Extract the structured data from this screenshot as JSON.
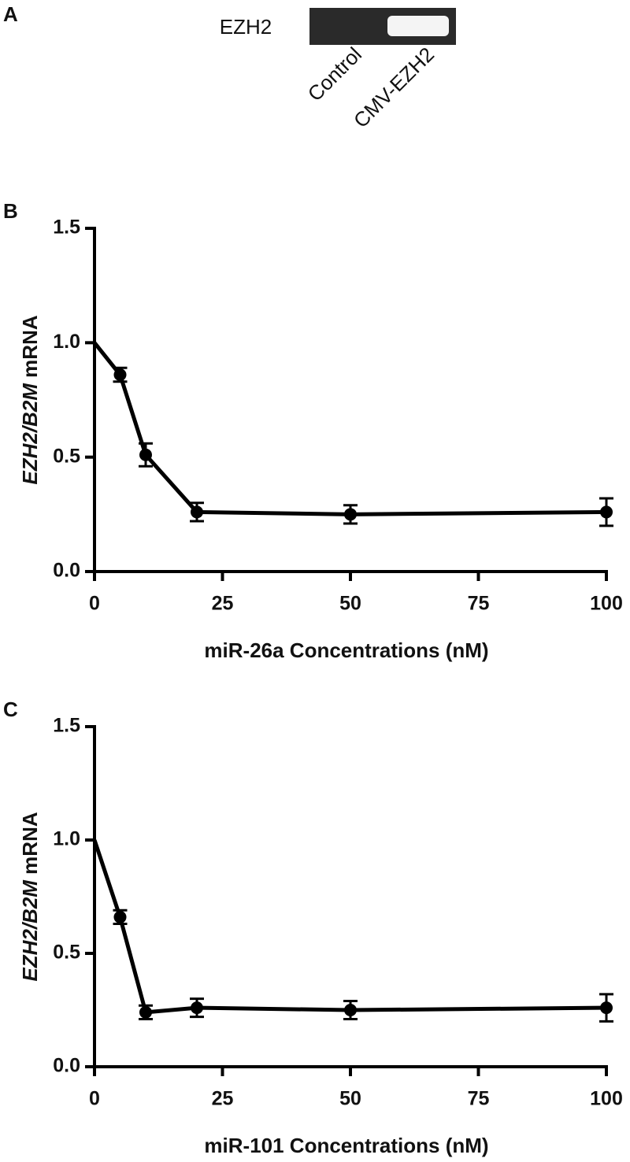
{
  "panel_a": {
    "panel": "A",
    "protein": "EZH2",
    "lanes": [
      "Control",
      "CMV-EZH2"
    ]
  },
  "chart_data": [
    {
      "type": "line",
      "panel": "B",
      "xlabel": "miR-26a Concentrations (nM)",
      "ylabel": "EZH2/B2M mRNA",
      "x": [
        0,
        5,
        10,
        20,
        50,
        100
      ],
      "series": [
        {
          "color": "#000000",
          "values": [
            1.0,
            0.86,
            0.51,
            0.26,
            0.25,
            0.26
          ],
          "errors": [
            null,
            0.03,
            0.05,
            0.04,
            0.04,
            0.06
          ]
        }
      ],
      "xlim": [
        0,
        100
      ],
      "xticks": [
        0,
        25,
        50,
        75,
        100
      ],
      "ylim": [
        0,
        1.5
      ],
      "yticks": [
        {
          "value": 0,
          "label": "0.0"
        },
        {
          "value": 0.5,
          "label": "0.5"
        },
        {
          "value": 1,
          "label": "1.0"
        },
        {
          "value": 1.5,
          "label": "1.5"
        }
      ]
    },
    {
      "type": "line",
      "panel": "C",
      "xlabel": "miR-101 Concentrations (nM)",
      "ylabel": "EZH2/B2M mRNA",
      "x": [
        0,
        5,
        10,
        20,
        50,
        100
      ],
      "series": [
        {
          "color": "#000000",
          "values": [
            1.0,
            0.66,
            0.24,
            0.26,
            0.25,
            0.26
          ],
          "errors": [
            null,
            0.03,
            0.03,
            0.04,
            0.04,
            0.06
          ]
        }
      ],
      "xlim": [
        0,
        100
      ],
      "xticks": [
        0,
        25,
        50,
        75,
        100
      ],
      "ylim": [
        0,
        1.5
      ],
      "yticks": [
        {
          "value": 0,
          "label": "0.0"
        },
        {
          "value": 0.5,
          "label": "0.5"
        },
        {
          "value": 1,
          "label": "1.0"
        },
        {
          "value": 1.5,
          "label": "1.5"
        }
      ]
    }
  ]
}
